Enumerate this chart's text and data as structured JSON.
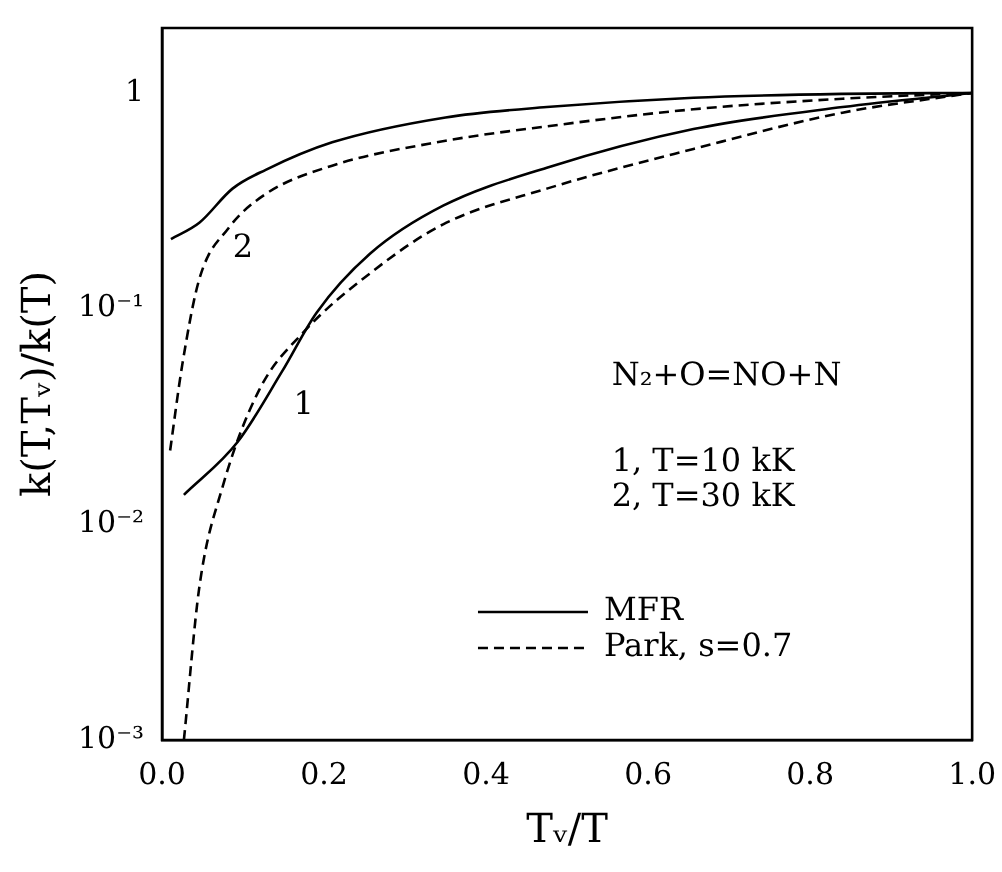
{
  "chart_data": {
    "type": "line",
    "xlabel": "Tᵥ/T",
    "ylabel": "k(T,Tᵥ)/k(T)",
    "log": "y",
    "xlim": [
      0,
      1
    ],
    "xticks": [
      {
        "value": 0,
        "label": "0.0"
      },
      0.2,
      0.4,
      0.6,
      0.8,
      {
        "value": 1,
        "label": "1.0"
      }
    ],
    "ylim": [
      0.001,
      2
    ],
    "yticks": [
      {
        "value": 0.001,
        "label": "10⁻³"
      },
      {
        "value": 0.01,
        "label": "10⁻²"
      },
      {
        "value": 0.1,
        "label": "10⁻¹"
      },
      1
    ],
    "grid": false,
    "legend": "bottom right",
    "marker": "none",
    "series": [
      {
        "name": "MFR",
        "color": "#000000",
        "line_style": "solid",
        "x": [
          0.011,
          0.046,
          0.087,
          0.128,
          0.21,
          0.35,
          0.475,
          0.656,
          0.84,
          1
        ],
        "values": [
          0.21,
          0.25,
          0.36,
          0.44,
          0.59,
          0.77,
          0.86,
          0.95,
          0.99,
          1
        ]
      },
      {
        "name": "Park, s=0.7",
        "color": "#000000",
        "line_style": "dashed",
        "x": [
          0.01,
          0.025,
          0.046,
          0.082,
          0.128,
          0.21,
          0.35,
          0.475,
          0.656,
          0.84,
          1
        ],
        "values": [
          0.022,
          0.055,
          0.137,
          0.236,
          0.34,
          0.46,
          0.6,
          0.7,
          0.84,
          0.94,
          1
        ]
      },
      {
        "color": "#000000",
        "line_style": "solid",
        "x": [
          0.027,
          0.093,
          0.148,
          0.191,
          0.257,
          0.347,
          0.475,
          0.656,
          0.84,
          1
        ],
        "values": [
          0.0137,
          0.024,
          0.051,
          0.096,
          0.18,
          0.3,
          0.45,
          0.68,
          0.86,
          1
        ]
      },
      {
        "color": "#000000",
        "line_style": "dashed",
        "x": [
          0.027,
          0.046,
          0.074,
          0.12,
          0.175,
          0.257,
          0.347,
          0.475,
          0.656,
          0.84,
          1
        ],
        "values": [
          0.001,
          0.0051,
          0.0146,
          0.042,
          0.078,
          0.146,
          0.246,
          0.36,
          0.55,
          0.81,
          1
        ]
      }
    ],
    "annotations": [
      "2",
      "1",
      "N₂+O=NO+N",
      "1, T=10 kK",
      "2, T=30 kK"
    ]
  }
}
